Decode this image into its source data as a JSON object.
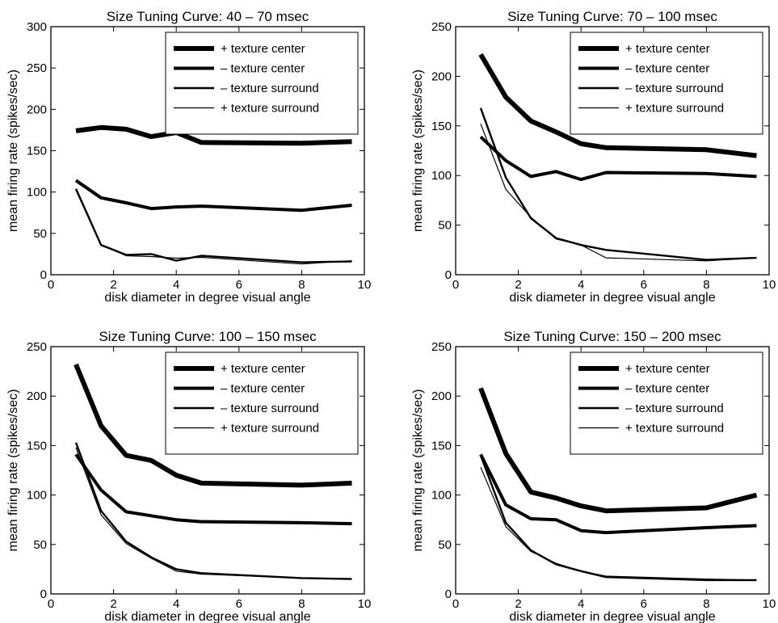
{
  "colors": {
    "line": "#000000",
    "background": "#ffffff"
  },
  "chart_data": [
    {
      "type": "line",
      "title": "Size Tuning Curve: 40 – 70 msec",
      "xlabel": "disk diameter in degree visual angle",
      "ylabel": "mean firing rate (spikes/sec)",
      "xlim": [
        0,
        10
      ],
      "ylim": [
        0,
        300
      ],
      "xticks": [
        "0",
        "2",
        "4",
        "6",
        "8",
        "10"
      ],
      "yticks": [
        "0",
        "50",
        "100",
        "150",
        "200",
        "250",
        "300"
      ],
      "grid": false,
      "legend_position": "top-right",
      "x": [
        0.8,
        1.6,
        2.4,
        3.2,
        4.0,
        4.8,
        8.0,
        9.6
      ],
      "series": [
        {
          "name": "+ texture center",
          "values": [
            174,
            178,
            176,
            167,
            172,
            160,
            159,
            161
          ]
        },
        {
          "name": "– texture center",
          "values": [
            114,
            93,
            87,
            80,
            82,
            83,
            78,
            84
          ]
        },
        {
          "name": "– texture surround",
          "values": [
            104,
            36,
            24,
            25,
            17,
            23,
            15,
            16
          ]
        },
        {
          "name": "+ texture surround",
          "values": [
            102,
            36,
            23,
            22,
            20,
            21,
            13,
            17
          ]
        }
      ]
    },
    {
      "type": "line",
      "title": "Size Tuning Curve: 70 – 100 msec",
      "xlabel": "disk diameter in degree visual angle",
      "ylabel": "mean firing rate (spikes/sec)",
      "xlim": [
        0,
        10
      ],
      "ylim": [
        0,
        250
      ],
      "xticks": [
        "0",
        "2",
        "4",
        "6",
        "8",
        "10"
      ],
      "yticks": [
        "0",
        "50",
        "100",
        "150",
        "200",
        "250"
      ],
      "grid": false,
      "legend_position": "top-right",
      "x": [
        0.8,
        1.6,
        2.4,
        3.2,
        4.0,
        4.8,
        8.0,
        9.6
      ],
      "series": [
        {
          "name": "+ texture center",
          "values": [
            222,
            179,
            155,
            144,
            132,
            128,
            126,
            120
          ]
        },
        {
          "name": "– texture center",
          "values": [
            139,
            115,
            99,
            104,
            96,
            103,
            102,
            99
          ]
        },
        {
          "name": "– texture surround",
          "values": [
            168,
            98,
            57,
            37,
            30,
            25,
            15,
            17
          ]
        },
        {
          "name": "+ texture surround",
          "values": [
            152,
            86,
            58,
            36,
            30,
            17,
            14,
            17
          ]
        }
      ]
    },
    {
      "type": "line",
      "title": "Size Tuning Curve: 100 – 150 msec",
      "xlabel": "disk diameter in degree visual angle",
      "ylabel": "mean firing rate (spikes/sec)",
      "xlim": [
        0,
        10
      ],
      "ylim": [
        0,
        250
      ],
      "xticks": [
        "0",
        "2",
        "4",
        "6",
        "8",
        "10"
      ],
      "yticks": [
        "0",
        "50",
        "100",
        "150",
        "200",
        "250"
      ],
      "grid": false,
      "legend_position": "top-right",
      "x": [
        0.8,
        1.6,
        2.4,
        3.2,
        4.0,
        4.8,
        8.0,
        9.6
      ],
      "series": [
        {
          "name": "+ texture center",
          "values": [
            232,
            170,
            140,
            135,
            120,
            112,
            110,
            112
          ]
        },
        {
          "name": "– texture center",
          "values": [
            141,
            105,
            83,
            79,
            75,
            73,
            72,
            71
          ]
        },
        {
          "name": "– texture surround",
          "values": [
            153,
            84,
            53,
            37,
            25,
            21,
            16,
            15
          ]
        },
        {
          "name": "+ texture surround",
          "values": [
            148,
            80,
            51,
            36,
            23,
            20,
            16,
            15
          ]
        }
      ]
    },
    {
      "type": "line",
      "title": "Size Tuning Curve: 150 – 200 msec",
      "xlabel": "disk diameter in degree visual angle",
      "ylabel": "mean firing rate (spikes/sec)",
      "xlim": [
        0,
        10
      ],
      "ylim": [
        0,
        250
      ],
      "xticks": [
        "0",
        "2",
        "4",
        "6",
        "8",
        "10"
      ],
      "yticks": [
        "0",
        "50",
        "100",
        "150",
        "200",
        "250"
      ],
      "grid": false,
      "legend_position": "top-right",
      "x": [
        0.8,
        1.6,
        2.4,
        3.2,
        4.0,
        4.8,
        8.0,
        9.6
      ],
      "series": [
        {
          "name": "+ texture center",
          "values": [
            208,
            142,
            103,
            97,
            89,
            84,
            87,
            100
          ]
        },
        {
          "name": "– texture center",
          "values": [
            141,
            90,
            76,
            75,
            64,
            62,
            67,
            69
          ]
        },
        {
          "name": "– texture surround",
          "values": [
            140,
            72,
            44,
            30,
            23,
            17,
            14,
            14
          ]
        },
        {
          "name": "+ texture surround",
          "values": [
            128,
            68,
            43,
            31,
            23,
            18,
            15,
            14
          ]
        }
      ]
    }
  ]
}
